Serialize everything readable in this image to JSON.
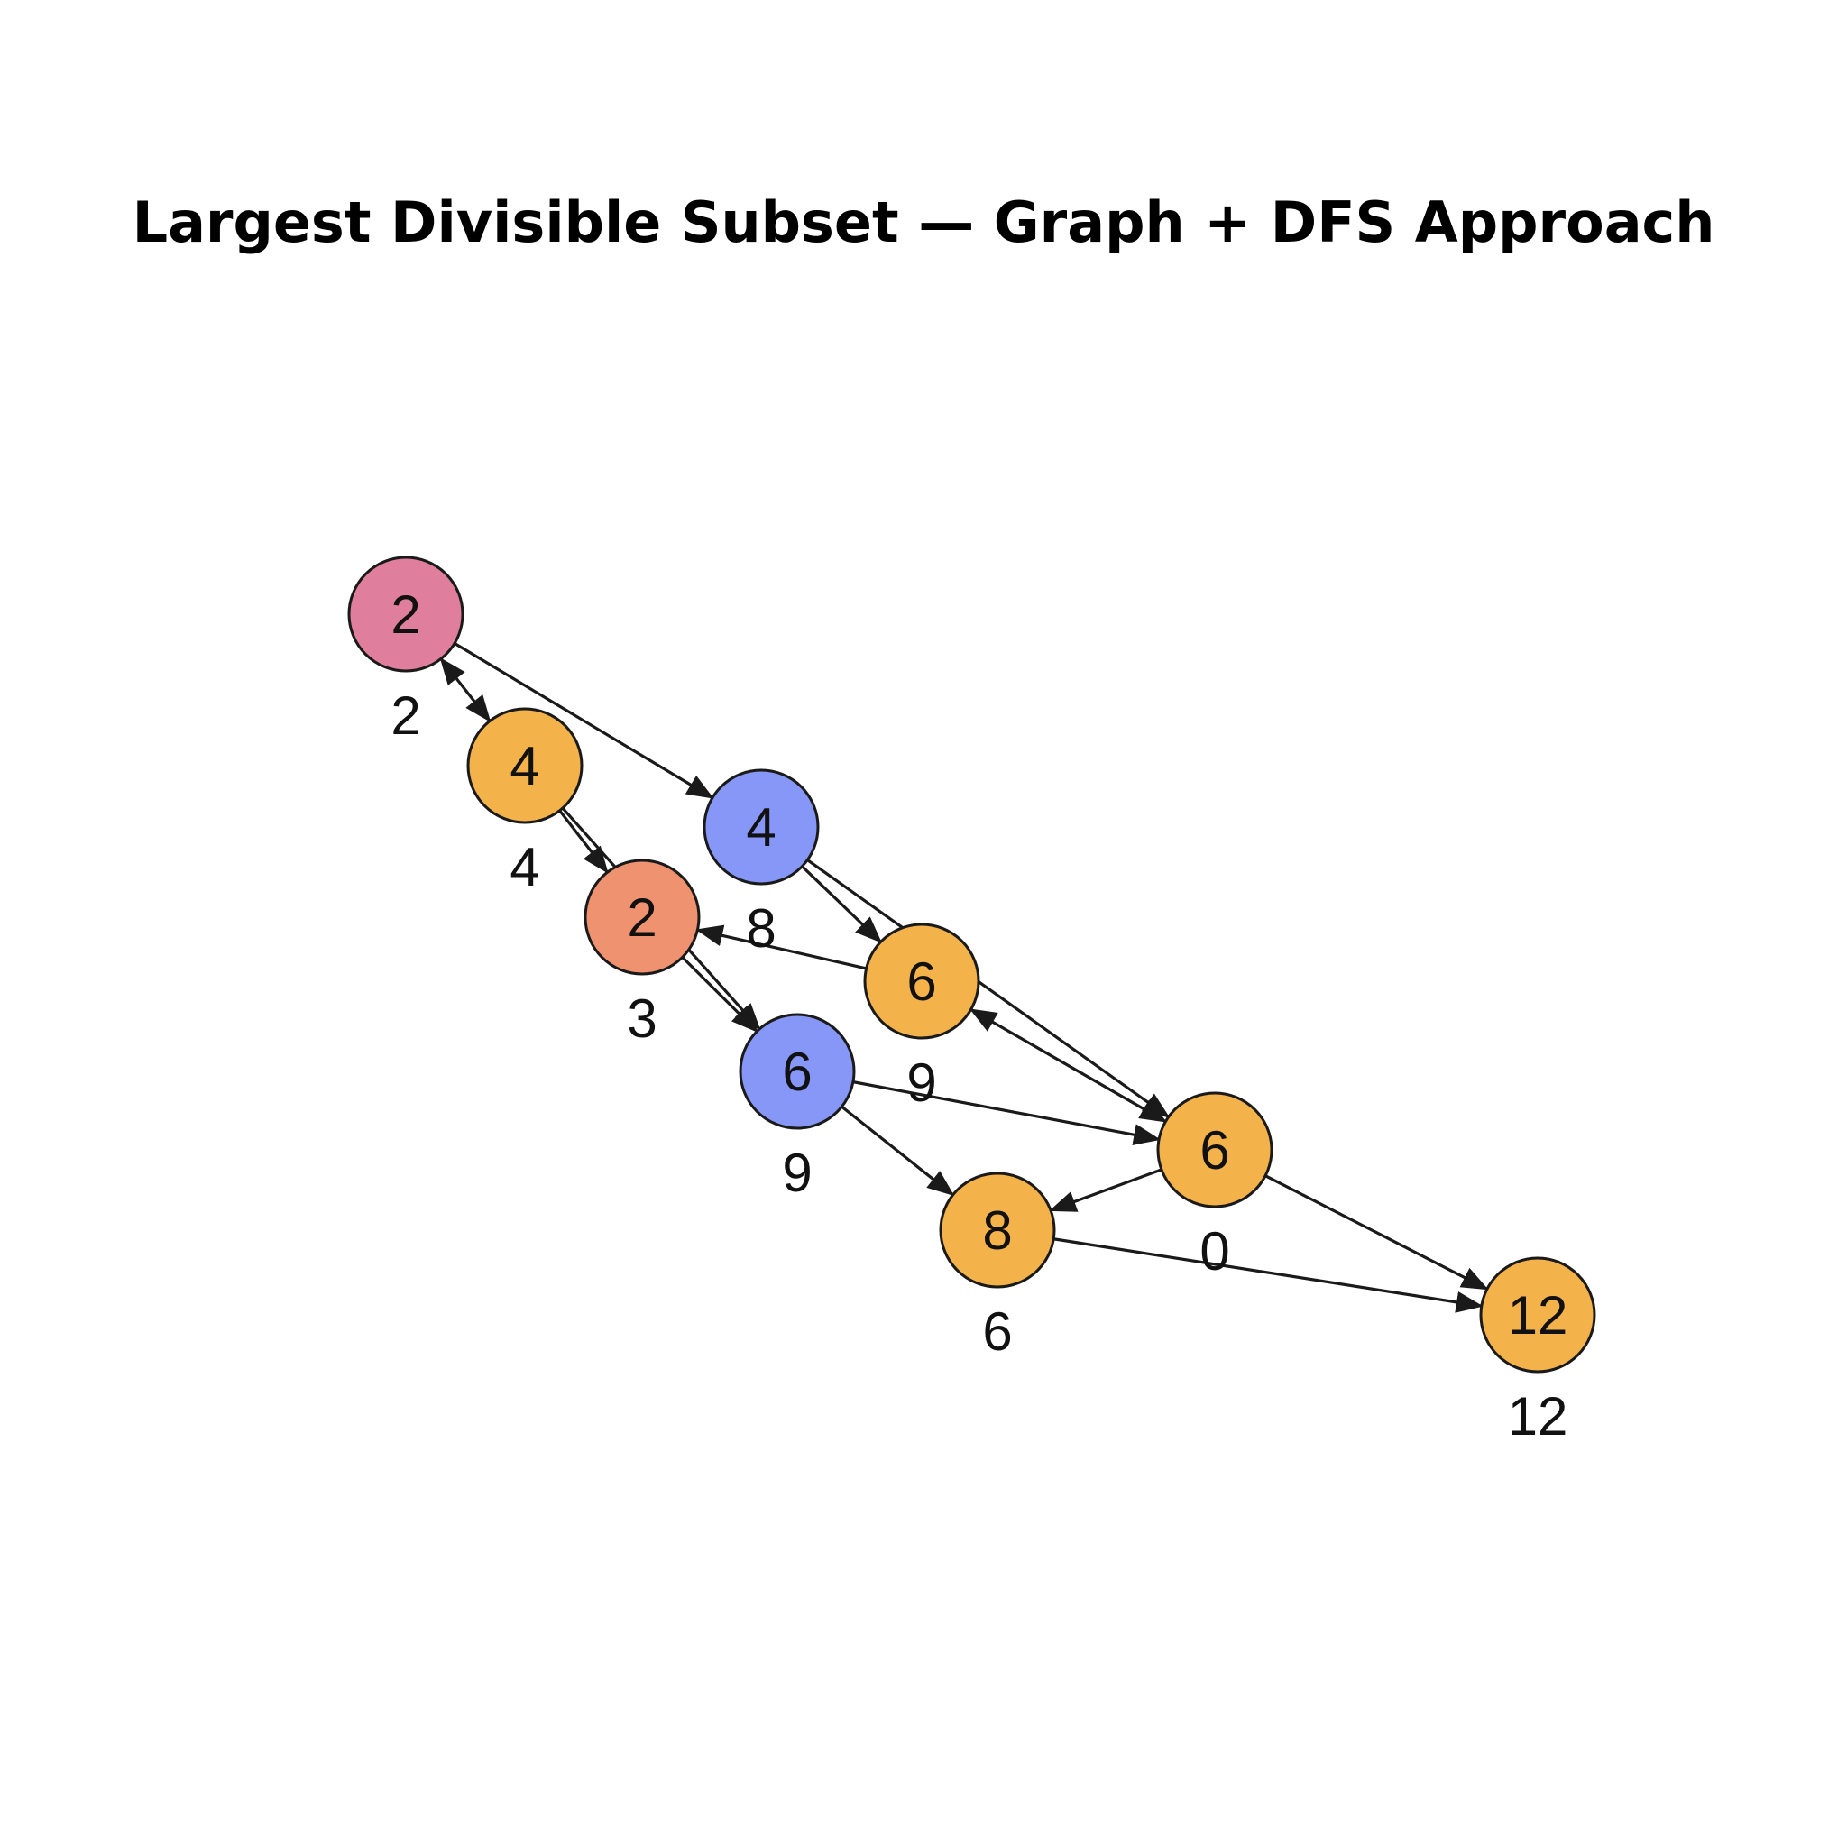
{
  "title": "Largest Divisible Subset — Graph + DFS Approach",
  "colors": {
    "pink": "#e07f9d",
    "orange": "#f4b24a",
    "salmon": "#ef9270",
    "blue": "#8697f8",
    "edge": "#1a1a1a"
  },
  "nodes": [
    {
      "id": "n0",
      "value": "2",
      "label": "2",
      "color": "pink"
    },
    {
      "id": "n1",
      "value": "4",
      "label": "4",
      "color": "orange"
    },
    {
      "id": "n2",
      "value": "2",
      "label": "3",
      "color": "salmon"
    },
    {
      "id": "n3",
      "value": "4",
      "label": "8",
      "color": "blue"
    },
    {
      "id": "n4",
      "value": "6",
      "label": "9",
      "color": "orange"
    },
    {
      "id": "n5",
      "value": "6",
      "label": "9",
      "color": "blue"
    },
    {
      "id": "n6",
      "value": "6",
      "label": "0",
      "color": "orange"
    },
    {
      "id": "n7",
      "value": "8",
      "label": "6",
      "color": "orange"
    },
    {
      "id": "n8",
      "value": "12",
      "label": "12",
      "color": "orange"
    }
  ],
  "edges": [
    {
      "from": "n0",
      "to": "n1",
      "bidirectional": true
    },
    {
      "from": "n0",
      "to": "n3",
      "bidirectional": false
    },
    {
      "from": "n1",
      "to": "n2",
      "bidirectional": false
    },
    {
      "from": "n1",
      "to": "n5",
      "bidirectional": false
    },
    {
      "from": "n2",
      "to": "n5",
      "bidirectional": false
    },
    {
      "from": "n4",
      "to": "n2",
      "bidirectional": false
    },
    {
      "from": "n3",
      "to": "n4",
      "bidirectional": false
    },
    {
      "from": "n3",
      "to": "n6",
      "bidirectional": false
    },
    {
      "from": "n4",
      "to": "n6",
      "bidirectional": true
    },
    {
      "from": "n5",
      "to": "n6",
      "bidirectional": false
    },
    {
      "from": "n5",
      "to": "n7",
      "bidirectional": false
    },
    {
      "from": "n6",
      "to": "n7",
      "bidirectional": false
    },
    {
      "from": "n6",
      "to": "n8",
      "bidirectional": false
    },
    {
      "from": "n7",
      "to": "n8",
      "bidirectional": false
    }
  ]
}
